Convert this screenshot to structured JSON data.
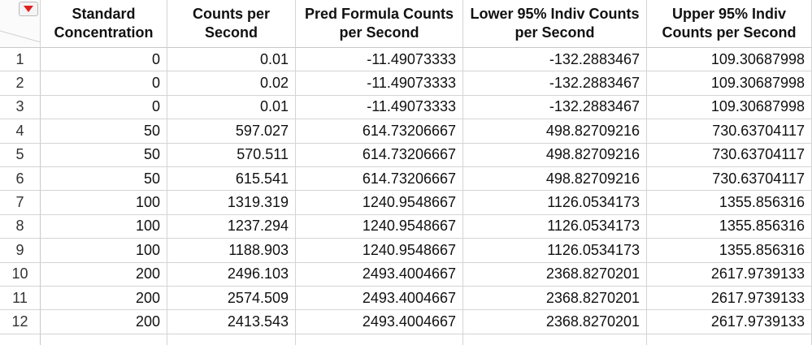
{
  "table": {
    "headers": [
      "Standard Concentration",
      "Counts per Second",
      "Pred Formula Counts per Second",
      "Lower 95% Indiv Counts per Second",
      "Upper 95% Indiv Counts per Second"
    ],
    "row_numbers": [
      "1",
      "2",
      "3",
      "4",
      "5",
      "6",
      "7",
      "8",
      "9",
      "10",
      "11",
      "12"
    ],
    "rows": [
      [
        "0",
        "0.01",
        "-11.49073333",
        "-132.2883467",
        "109.30687998"
      ],
      [
        "0",
        "0.02",
        "-11.49073333",
        "-132.2883467",
        "109.30687998"
      ],
      [
        "0",
        "0.01",
        "-11.49073333",
        "-132.2883467",
        "109.30687998"
      ],
      [
        "50",
        "597.027",
        "614.73206667",
        "498.82709216",
        "730.63704117"
      ],
      [
        "50",
        "570.511",
        "614.73206667",
        "498.82709216",
        "730.63704117"
      ],
      [
        "50",
        "615.541",
        "614.73206667",
        "498.82709216",
        "730.63704117"
      ],
      [
        "100",
        "1319.319",
        "1240.9548667",
        "1126.0534173",
        "1355.856316"
      ],
      [
        "100",
        "1237.294",
        "1240.9548667",
        "1126.0534173",
        "1355.856316"
      ],
      [
        "100",
        "1188.903",
        "1240.9548667",
        "1126.0534173",
        "1355.856316"
      ],
      [
        "200",
        "2496.103",
        "2493.4004667",
        "2368.8270201",
        "2617.9739133"
      ],
      [
        "200",
        "2574.509",
        "2493.4004667",
        "2368.8270201",
        "2617.9739133"
      ],
      [
        "200",
        "2413.543",
        "2493.4004667",
        "2368.8270201",
        "2617.9739133"
      ]
    ]
  },
  "icons": {
    "menu": "red-disclosure-triangle-icon",
    "menu_color": "#e02020"
  }
}
